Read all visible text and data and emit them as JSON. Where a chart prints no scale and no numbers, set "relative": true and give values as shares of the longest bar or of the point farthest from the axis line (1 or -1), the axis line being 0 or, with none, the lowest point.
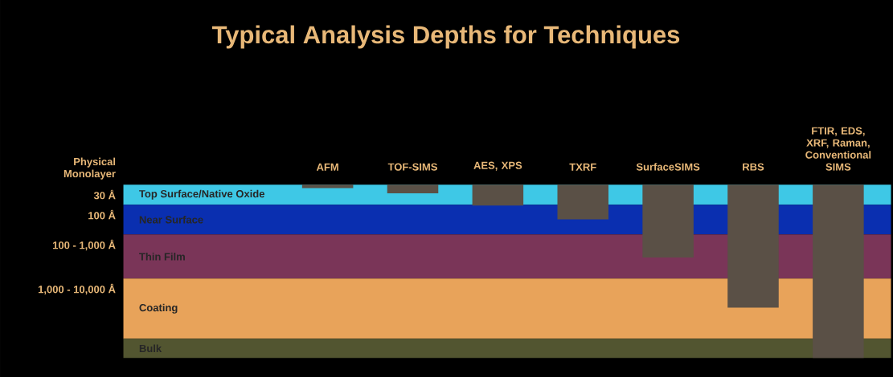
{
  "chart_data": {
    "type": "bar",
    "title": "Typical Analysis Depths for Techniques",
    "categories": [
      "AFM",
      "TOF-SIMS",
      "AES, XPS",
      "TXRF",
      "SurfaceSIMS",
      "RBS",
      "FTIR, EDS, XRF, Raman, Conventional SIMS"
    ],
    "values": [
      -0.02,
      -0.05,
      -0.12,
      -0.2,
      -0.42,
      -0.71,
      -1
    ],
    "color": "#5a5046",
    "relative": true,
    "bands": [
      {
        "axis": "y",
        "from": 0,
        "to": -0.116,
        "label": "Top Surface/Native Oxide",
        "color": "#3ec8e6"
      },
      {
        "axis": "y",
        "from": -0.116,
        "to": -0.287,
        "label": "Near Surface",
        "color": "#0a2fb0"
      },
      {
        "axis": "y",
        "from": -0.287,
        "to": -0.542,
        "label": "Thin Film",
        "color": "#7a3558"
      },
      {
        "axis": "y",
        "from": -0.542,
        "to": -0.889,
        "label": "Coating",
        "color": "#e8a35a"
      },
      {
        "axis": "y",
        "from": -0.889,
        "to": -1,
        "label": "Bulk",
        "color": "#525530"
      }
    ],
    "annotations": [
      "Physical Monolayer",
      "30 Å",
      "100 Å",
      "100 - 1,000 Å",
      "1,000 - 10,000 Å"
    ]
  }
}
